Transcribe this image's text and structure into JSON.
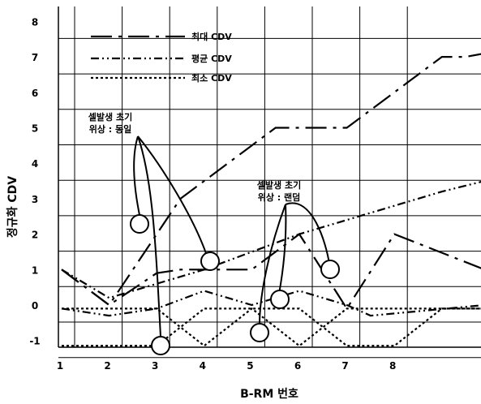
{
  "chart_data": {
    "type": "line",
    "xlabel": "B-RM 번호",
    "ylabel": "정규화 CDV",
    "x_ticks": [
      "1",
      "2",
      "3",
      "4",
      "5",
      "6",
      "7",
      "8"
    ],
    "y_ticks": [
      "-1",
      "0",
      "1",
      "2",
      "3",
      "4",
      "5",
      "6",
      "7",
      "8"
    ],
    "xlim": [
      1,
      9.9
    ],
    "ylim": [
      -1.2,
      8.3
    ],
    "grid": true,
    "legend_position": "top-left",
    "series": [
      {
        "name": "최대 CDV",
        "dash": "26,8,4,8",
        "x": [
          1,
          2,
          2.5,
          3,
          3.5,
          4,
          4.5,
          5,
          5.5,
          6,
          6.5,
          7,
          7.5,
          8,
          8.5,
          9,
          9.5,
          9.9
        ],
        "y": [
          1,
          0,
          1,
          2,
          3,
          3.5,
          4,
          4.5,
          5,
          5,
          5,
          5,
          5.5,
          6,
          6.5,
          7,
          7,
          7.1
        ]
      },
      {
        "name": "평균 CDV",
        "dash": "10,4,2,4,2,4",
        "x": [
          1,
          2,
          3,
          4,
          5,
          6,
          7,
          8,
          9,
          9.9
        ],
        "y": [
          1,
          0.2,
          0.6,
          1,
          1.5,
          2,
          2.4,
          2.8,
          3.2,
          3.5
        ]
      },
      {
        "name": "최소 CDV",
        "dash": "3,3",
        "x": [
          1,
          2,
          3,
          4,
          5,
          6,
          7,
          8,
          9,
          9.9
        ],
        "y": [
          -1.15,
          -1.15,
          -1.15,
          -0.1,
          -0.1,
          -0.1,
          -1.15,
          -1.15,
          -0.1,
          -0.1
        ]
      }
    ],
    "extra_lines": [
      {
        "dash": "26,8,4,8",
        "x": [
          1,
          2,
          3,
          3.5,
          5,
          6,
          7,
          8,
          9.9
        ],
        "y": [
          1,
          0,
          0.9,
          1,
          1,
          2,
          -0.1,
          2,
          1
        ]
      },
      {
        "dash": "10,4,2,4,2,4",
        "x": [
          1,
          2,
          3,
          4,
          5,
          5.5,
          6,
          6.5,
          7,
          7.5,
          9.9
        ],
        "y": [
          -0.1,
          -0.3,
          -0.1,
          0.4,
          0,
          0.2,
          0.4,
          0.2,
          0,
          -0.3,
          0
        ]
      },
      {
        "dash": "3,3",
        "x": [
          1,
          3,
          4,
          5,
          6,
          7,
          7.5,
          9.9
        ],
        "y": [
          -0.1,
          -0.1,
          -1.15,
          -0.1,
          -1.15,
          -0.1,
          -0.1,
          -0.1
        ]
      }
    ],
    "annotations": [
      {
        "line1": "셀발생 초기",
        "line2": "위상 : 동일"
      },
      {
        "line1": "셀발생 초기",
        "line2": "위상 : 랜덤"
      }
    ]
  }
}
